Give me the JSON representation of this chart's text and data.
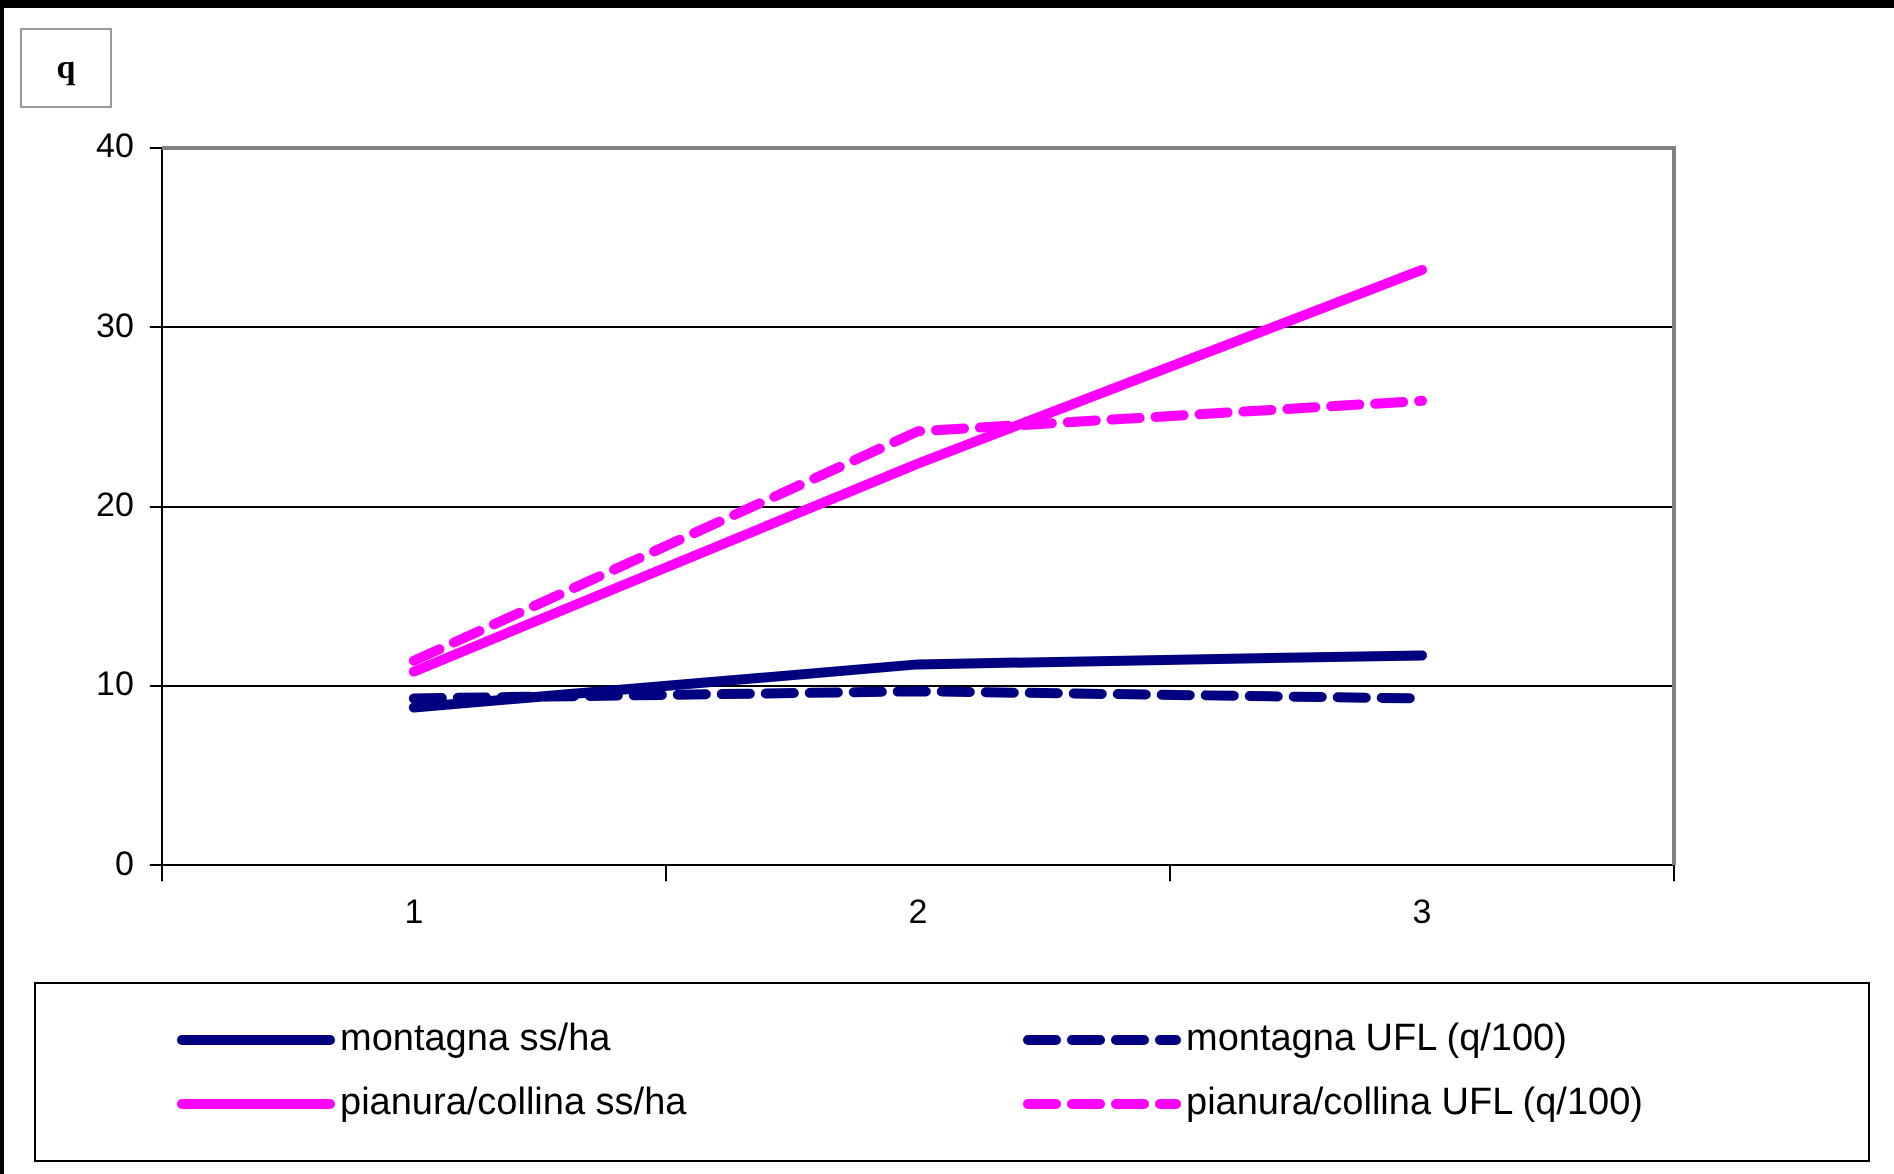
{
  "chart_data": {
    "type": "line",
    "ylabel": "q",
    "categories": [
      "1",
      "2",
      "3"
    ],
    "ylim": [
      0,
      40
    ],
    "yticks": [
      0,
      10,
      20,
      30,
      40
    ],
    "grid": "y",
    "legend": "bottom",
    "marker": "none",
    "series": [
      {
        "name": "montagna ss/ha",
        "color": "#000080",
        "line_style": "solid",
        "values": [
          8.8,
          11.2,
          11.7
        ]
      },
      {
        "name": "montagna UFL (q/100)",
        "color": "#000080",
        "line_style": "dashed",
        "values": [
          9.3,
          9.7,
          9.3
        ]
      },
      {
        "name": "pianura/collina ss/ha",
        "color": "#ff00ff",
        "line_style": "solid",
        "values": [
          10.8,
          22.4,
          33.2
        ]
      },
      {
        "name": "pianura/collina UFL (q/100)",
        "color": "#ff00ff",
        "line_style": "dashed",
        "values": [
          11.4,
          24.2,
          25.9
        ]
      }
    ]
  }
}
